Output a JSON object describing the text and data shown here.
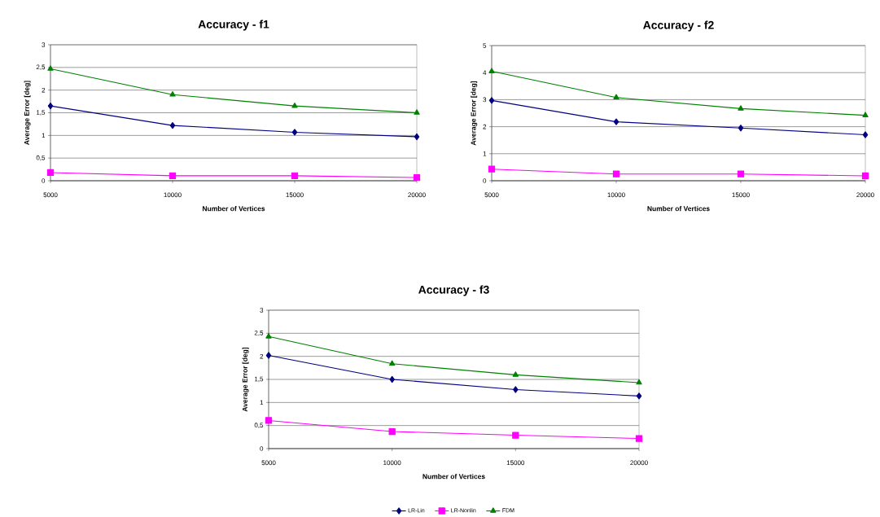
{
  "chart_data": [
    {
      "type": "line",
      "title": "Accuracy - f1",
      "xlabel": "Number of Vertices",
      "ylabel": "Average Error [deg]",
      "categories": [
        "5000",
        "10000",
        "15000",
        "20000"
      ],
      "series": [
        {
          "color": "#000080",
          "marker": "diamond",
          "values": [
            1.65,
            1.22,
            1.07,
            0.97
          ]
        },
        {
          "color": "#ff00ff",
          "marker": "square",
          "values": [
            0.18,
            0.11,
            0.11,
            0.07
          ]
        },
        {
          "color": "#008000",
          "marker": "triangle",
          "values": [
            2.47,
            1.9,
            1.65,
            1.5
          ]
        }
      ],
      "ylim": [
        0,
        3
      ],
      "yticks": [
        0,
        {
          "value": 0.5,
          "label": "0,5"
        },
        1,
        {
          "value": 1.5,
          "label": "1,5"
        },
        2,
        {
          "value": 2.5,
          "label": "2,5"
        },
        3
      ],
      "grid": "y",
      "line_style": "solid"
    },
    {
      "type": "line",
      "title": "Accuracy - f2",
      "xlabel": "Number of Vertices",
      "ylabel": "Average Error [deg]",
      "categories": [
        "5000",
        "10000",
        "15000",
        "20000"
      ],
      "series": [
        {
          "color": "#000080",
          "marker": "diamond",
          "values": [
            2.97,
            2.18,
            1.95,
            1.7
          ]
        },
        {
          "color": "#ff00ff",
          "marker": "square",
          "values": [
            0.43,
            0.25,
            0.25,
            0.18
          ]
        },
        {
          "color": "#008000",
          "marker": "triangle",
          "values": [
            4.05,
            3.08,
            2.67,
            2.42
          ]
        }
      ],
      "ylim": [
        0,
        5
      ],
      "yticks": [
        0,
        1,
        2,
        3,
        4,
        5
      ],
      "grid": "y",
      "line_style": "solid"
    },
    {
      "type": "line",
      "title": "Accuracy - f3",
      "xlabel": "Number of Vertices",
      "ylabel": "Average Error [deg]",
      "categories": [
        "5000",
        "10000",
        "15000",
        "20000"
      ],
      "series": [
        {
          "name": "LR-Lin",
          "color": "#000080",
          "marker": "diamond",
          "values": [
            2.02,
            1.5,
            1.28,
            1.14
          ]
        },
        {
          "name": "LR-Nonlin",
          "color": "#ff00ff",
          "marker": "square",
          "values": [
            0.61,
            0.37,
            0.29,
            0.22
          ]
        },
        {
          "name": "FDM",
          "color": "#008000",
          "marker": "triangle",
          "values": [
            2.43,
            1.84,
            1.6,
            1.43
          ]
        }
      ],
      "ylim": [
        0,
        3
      ],
      "yticks": [
        0,
        {
          "value": 0.5,
          "label": "0,5"
        },
        1,
        {
          "value": 1.5,
          "label": "1,5"
        },
        2,
        {
          "value": 2.5,
          "label": "2,5"
        },
        3
      ],
      "grid": "y",
      "legend": "bottom",
      "line_style": "solid"
    }
  ]
}
